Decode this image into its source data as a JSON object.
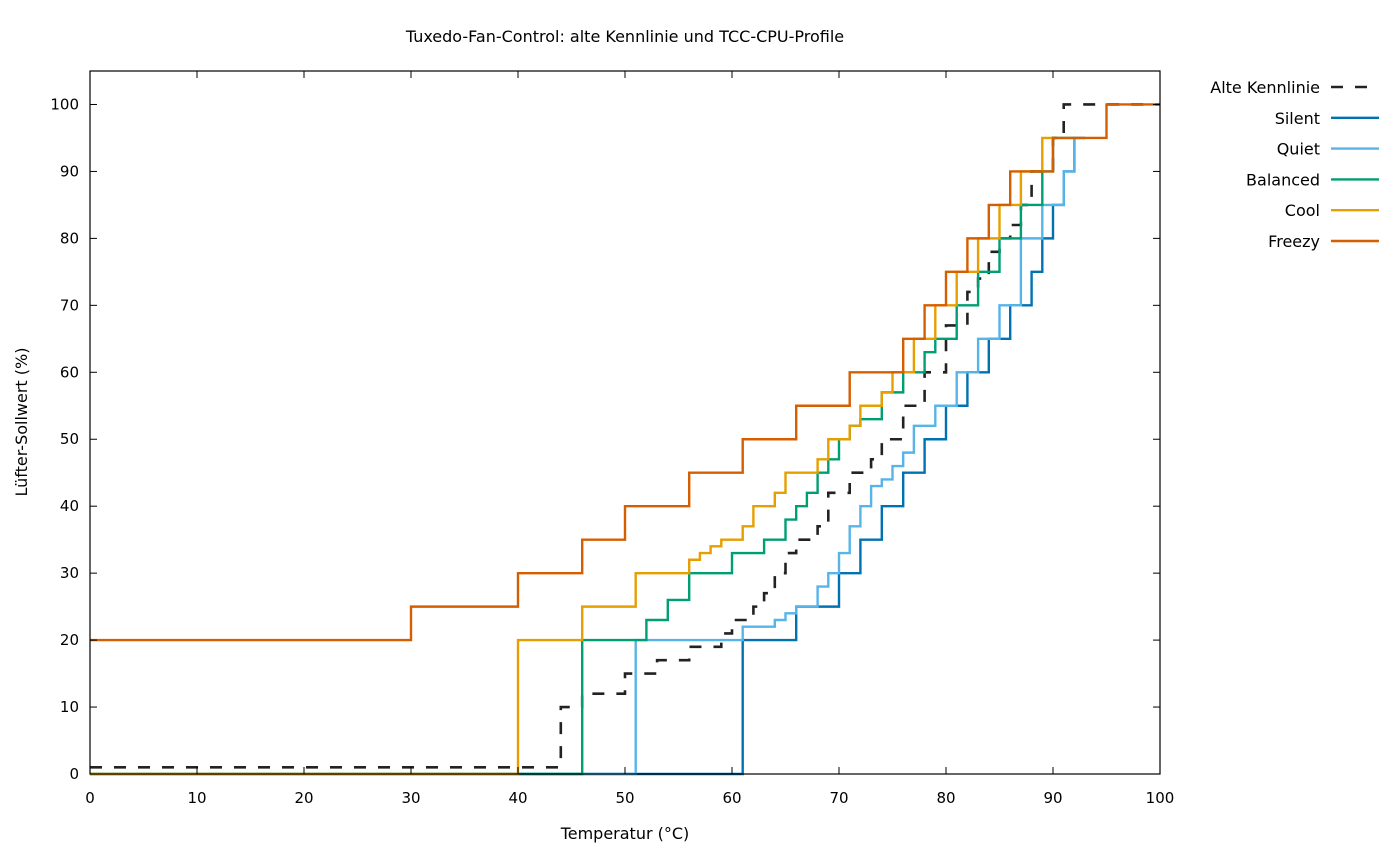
{
  "chart_data": {
    "type": "line",
    "title": "Tuxedo-Fan-Control: alte Kennlinie und TCC-CPU-Profile",
    "xlabel": "Temperatur (°C)",
    "ylabel": "Lüfter-Sollwert (%)",
    "xlim": [
      0,
      100
    ],
    "ylim": [
      0,
      105
    ],
    "xticks": [
      0,
      10,
      20,
      30,
      40,
      50,
      60,
      70,
      80,
      90,
      100
    ],
    "yticks": [
      0,
      10,
      20,
      30,
      40,
      50,
      60,
      70,
      80,
      90,
      100
    ],
    "grid": false,
    "legend_position": "outside-top-right",
    "step": "post",
    "series": [
      {
        "name": "Alte Kennlinie",
        "color": "#222222",
        "dash": true,
        "x": [
          0,
          44,
          46,
          50,
          53,
          56,
          59,
          60,
          61,
          62,
          63,
          64,
          65,
          66,
          67,
          68,
          69,
          70,
          71,
          72,
          73,
          74,
          75,
          76,
          77,
          78,
          79,
          80,
          81,
          82,
          83,
          84,
          85,
          86,
          87,
          88,
          89,
          90,
          91,
          100
        ],
        "y": [
          1,
          10,
          12,
          15,
          17,
          19,
          21,
          23,
          23,
          25,
          27,
          30,
          33,
          35,
          35,
          37,
          42,
          42,
          45,
          45,
          47,
          50,
          50,
          55,
          55,
          60,
          60,
          67,
          67,
          72,
          74,
          78,
          80,
          82,
          85,
          90,
          90,
          95,
          100,
          100
        ]
      },
      {
        "name": "Silent",
        "color": "#0072b2",
        "dash": false,
        "x": [
          0,
          61,
          66,
          70,
          72,
          74,
          76,
          78,
          80,
          82,
          84,
          86,
          88,
          89,
          90,
          91,
          92,
          93
        ],
        "y": [
          0,
          20,
          25,
          30,
          35,
          40,
          45,
          50,
          55,
          60,
          65,
          70,
          75,
          80,
          85,
          90,
          95,
          95
        ]
      },
      {
        "name": "Quiet",
        "color": "#56b4e9",
        "dash": false,
        "x": [
          0,
          51,
          61,
          64,
          65,
          66,
          68,
          69,
          70,
          71,
          72,
          73,
          74,
          75,
          76,
          77,
          78,
          79,
          80,
          81,
          82,
          83,
          84,
          85,
          86,
          87,
          88,
          89,
          91,
          92,
          93
        ],
        "y": [
          0,
          20,
          22,
          23,
          24,
          25,
          28,
          30,
          33,
          37,
          40,
          43,
          44,
          46,
          48,
          52,
          52,
          55,
          55,
          60,
          60,
          65,
          65,
          70,
          70,
          80,
          80,
          85,
          90,
          95,
          95
        ]
      },
      {
        "name": "Balanced",
        "color": "#009e73",
        "dash": false,
        "x": [
          0,
          46,
          52,
          54,
          56,
          60,
          63,
          65,
          66,
          67,
          68,
          69,
          70,
          71,
          72,
          73,
          74,
          75,
          76,
          77,
          78,
          79,
          80,
          81,
          82,
          83,
          84,
          85,
          86,
          87,
          88,
          89,
          90,
          92
        ],
        "y": [
          0,
          20,
          23,
          26,
          30,
          33,
          35,
          38,
          40,
          42,
          45,
          47,
          50,
          52,
          53,
          53,
          57,
          57,
          60,
          60,
          63,
          65,
          65,
          70,
          70,
          75,
          75,
          80,
          80,
          85,
          85,
          90,
          95,
          95
        ]
      },
      {
        "name": "Cool",
        "color": "#e69f00",
        "dash": false,
        "x": [
          0,
          40,
          46,
          51,
          56,
          57,
          58,
          59,
          60,
          61,
          62,
          64,
          65,
          68,
          69,
          70,
          71,
          72,
          73,
          74,
          75,
          76,
          77,
          78,
          79,
          80,
          81,
          82,
          83,
          84,
          85,
          86,
          87,
          88,
          89,
          90
        ],
        "y": [
          0,
          20,
          25,
          30,
          32,
          33,
          34,
          35,
          35,
          37,
          40,
          42,
          45,
          47,
          50,
          50,
          52,
          55,
          55,
          57,
          60,
          60,
          65,
          65,
          70,
          70,
          75,
          75,
          80,
          80,
          85,
          85,
          90,
          90,
          95,
          95
        ]
      },
      {
        "name": "Freezy",
        "color": "#d55e00",
        "dash": false,
        "x": [
          0,
          30,
          40,
          46,
          50,
          56,
          61,
          66,
          71,
          76,
          77,
          78,
          79,
          80,
          81,
          82,
          83,
          84,
          85,
          86,
          87,
          88,
          89,
          90,
          91,
          95,
          100
        ],
        "y": [
          20,
          25,
          30,
          35,
          40,
          45,
          50,
          55,
          60,
          65,
          65,
          70,
          70,
          75,
          75,
          80,
          80,
          85,
          85,
          90,
          90,
          90,
          90,
          95,
          95,
          100,
          100
        ]
      }
    ]
  }
}
